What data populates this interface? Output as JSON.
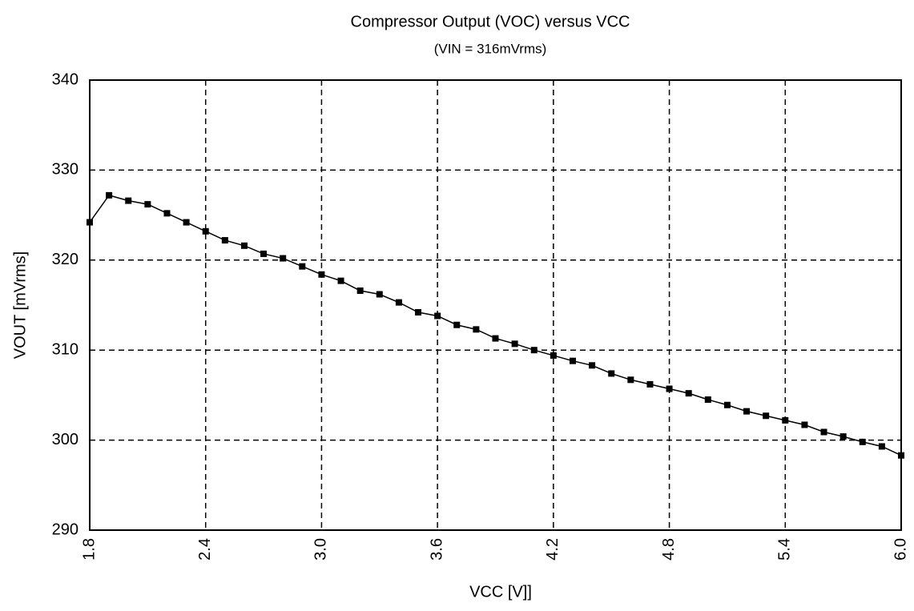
{
  "chart_data": {
    "type": "line",
    "title": "Compressor Output (VOC) versus VCC",
    "subtitle": "(VIN = 316mVrms)",
    "x_label": "VCC [V]]",
    "y_label": "VOUT [mVrms]",
    "x": [
      1.8,
      1.9,
      2.0,
      2.1,
      2.2,
      2.3,
      2.4,
      2.5,
      2.6,
      2.7,
      2.8,
      2.9,
      3.0,
      3.1,
      3.2,
      3.3,
      3.4,
      3.5,
      3.6,
      3.7,
      3.8,
      3.9,
      4.0,
      4.1,
      4.2,
      4.3,
      4.4,
      4.5,
      4.6,
      4.7,
      4.8,
      4.9,
      5.0,
      5.1,
      5.2,
      5.3,
      5.4,
      5.5,
      5.6,
      5.7,
      5.8,
      5.9,
      6.0
    ],
    "values": [
      324.2,
      327.2,
      326.6,
      326.2,
      325.2,
      324.2,
      323.2,
      322.2,
      321.6,
      320.7,
      320.2,
      319.3,
      318.4,
      317.7,
      316.6,
      316.2,
      315.3,
      314.2,
      313.8,
      312.8,
      312.3,
      311.3,
      310.7,
      310.0,
      309.4,
      308.8,
      308.3,
      307.4,
      306.7,
      306.2,
      305.7,
      305.2,
      304.5,
      303.9,
      303.2,
      302.7,
      302.2,
      301.7,
      300.9,
      300.4,
      299.8,
      299.3,
      298.3
    ],
    "color": "#000000",
    "xlim": [
      1.8,
      6.0
    ],
    "xticks": [
      1.8,
      2.4,
      {
        "value": 3,
        "label": "3.0"
      },
      3.6,
      4.2,
      4.8,
      5.4,
      {
        "value": 6,
        "label": "6.0"
      }
    ],
    "ylim": [
      290,
      340
    ],
    "yticks": [
      290,
      300,
      310,
      320,
      330,
      340
    ],
    "grid": true
  }
}
